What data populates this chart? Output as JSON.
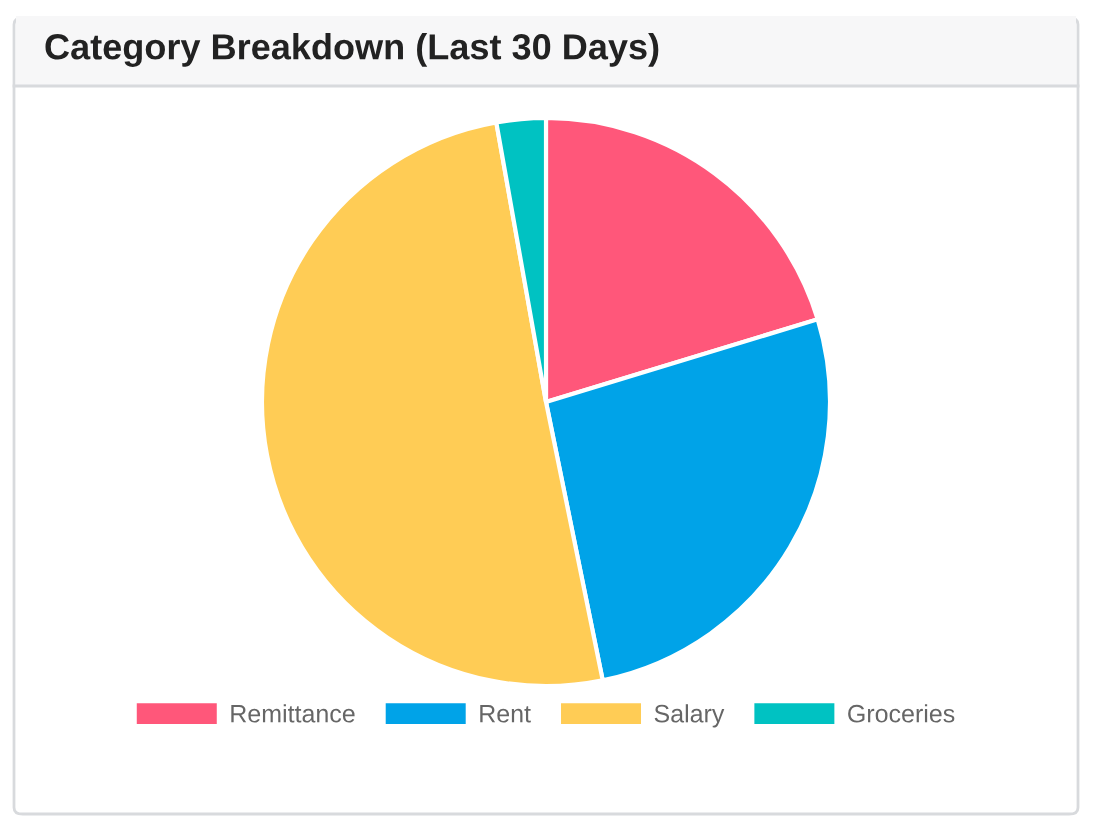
{
  "chart_data": {
    "type": "pie",
    "title": "Category Breakdown (Last 30 Days)",
    "categories": [
      "Remittance",
      "Rent",
      "Salary",
      "Groceries"
    ],
    "values": [
      20.3,
      26.5,
      50.4,
      2.8
    ],
    "colors": [
      "#ff577a",
      "#00a3e8",
      "#ffcc55",
      "#00c2c2"
    ],
    "legend": "bottom"
  }
}
